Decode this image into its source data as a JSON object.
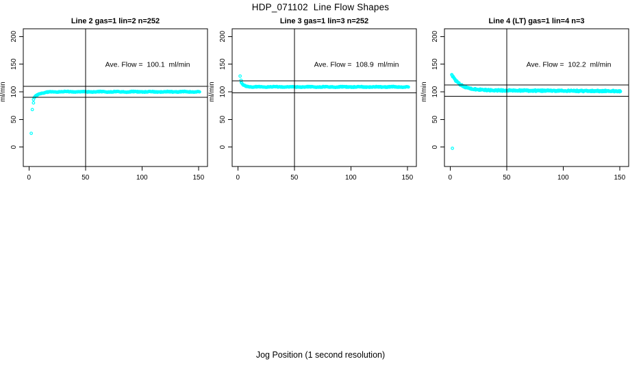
{
  "figure": {
    "title": "HDP_071102  Line Flow Shapes",
    "xlabel": "Jog Position (1 second resolution)",
    "background": "#FFFFFF",
    "axis_color": "#000000",
    "point_color": "#00FFFF"
  },
  "chart_data": [
    {
      "type": "scatter",
      "title": "Line 2 gas=1 lin=2 n=252",
      "ylabel": "ml/min",
      "annotation": "Ave. Flow =  100.1  ml/min",
      "ave_flow_ml_min": 100.1,
      "n_points": 252,
      "xticks": [
        0,
        50,
        100,
        150
      ],
      "yticks": [
        0,
        50,
        100,
        150,
        200
      ],
      "xlim": [
        -5,
        158
      ],
      "ylim": [
        -35,
        214
      ],
      "grid": false,
      "vline_x": 50,
      "hlines": [
        110.1,
        90.1
      ],
      "head_points": [
        [
          2,
          25
        ],
        [
          3,
          68
        ],
        [
          4,
          80
        ],
        [
          4,
          86
        ]
      ],
      "band": {
        "x_start": 4.5,
        "x_end": 151,
        "step": 0.5,
        "y_start": 89,
        "y_end": 100.1,
        "tau": 4.5,
        "jitter": 0.8,
        "thickness": 1.3,
        "drift": 0
      }
    },
    {
      "type": "scatter",
      "title": "Line 3 gas=1 lin=3 n=252",
      "ylabel": "ml/min",
      "annotation": "Ave. Flow =  108.9  ml/min",
      "ave_flow_ml_min": 108.9,
      "n_points": 252,
      "xticks": [
        0,
        50,
        100,
        150
      ],
      "yticks": [
        0,
        50,
        100,
        150,
        200
      ],
      "xlim": [
        -5,
        158
      ],
      "ylim": [
        -35,
        214
      ],
      "grid": false,
      "vline_x": 50,
      "hlines": [
        119.8,
        98.0
      ],
      "head_points": [
        [
          2,
          128.5
        ],
        [
          2.8,
          121
        ]
      ],
      "band": {
        "x_start": 3,
        "x_end": 151,
        "step": 0.5,
        "y_start": 117,
        "y_end": 108.9,
        "tau": 2.2,
        "jitter": 0.7,
        "thickness": 1.3,
        "drift": 0
      }
    },
    {
      "type": "scatter",
      "title": "Line 4 (LT) gas=1 lin=4 n=3",
      "ylabel": "ml/min",
      "annotation": "Ave. Flow =  102.2  ml/min",
      "ave_flow_ml_min": 102.2,
      "n_points": 3,
      "xticks": [
        0,
        50,
        100,
        150
      ],
      "yticks": [
        0,
        50,
        100,
        150,
        200
      ],
      "xlim": [
        -5,
        158
      ],
      "ylim": [
        -35,
        214
      ],
      "grid": false,
      "vline_x": 50,
      "hlines": [
        112.4,
        92.0
      ],
      "head_points": [
        [
          2,
          -2
        ],
        [
          1.5,
          131
        ]
      ],
      "band": {
        "x_start": 1.5,
        "x_end": 151,
        "step": 0.4,
        "y_start": 131,
        "y_end": 103,
        "tau": 7.5,
        "jitter": 0.5,
        "thickness": 2.4,
        "drift": -0.012
      }
    }
  ]
}
